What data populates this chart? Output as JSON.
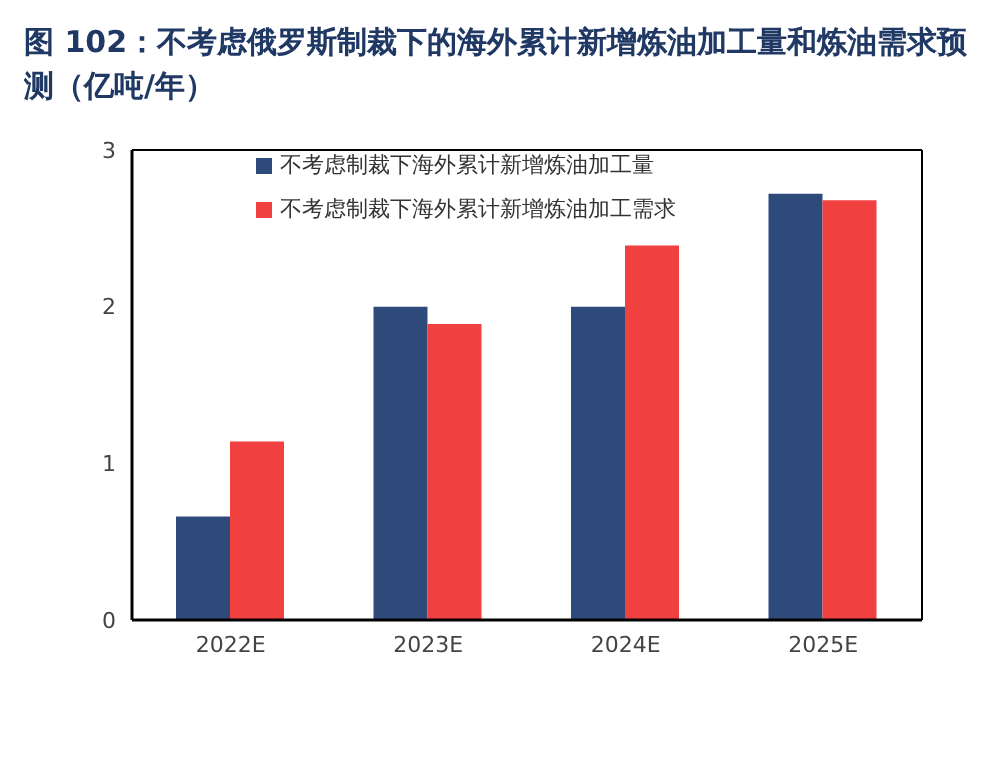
{
  "chart_data": {
    "type": "bar",
    "title": "图  102：不考虑俄罗斯制裁下的海外累计新增炼油加工量和炼油需求预测（亿吨/年）",
    "categories": [
      "2022E",
      "2023E",
      "2024E",
      "2025E"
    ],
    "series": [
      {
        "name": "不考虑制裁下海外累计新增炼油加工量",
        "color": "#2e4a7a",
        "values": [
          0.66,
          2.0,
          2.0,
          2.72
        ]
      },
      {
        "name": "不考虑制裁下海外累计新增炼油加工需求",
        "color": "#f04040",
        "values": [
          1.14,
          1.89,
          2.39,
          2.68
        ]
      }
    ],
    "ylim": [
      0,
      3
    ],
    "yticks": [
      0,
      1,
      2,
      3
    ],
    "legend": "top",
    "grid": false
  }
}
